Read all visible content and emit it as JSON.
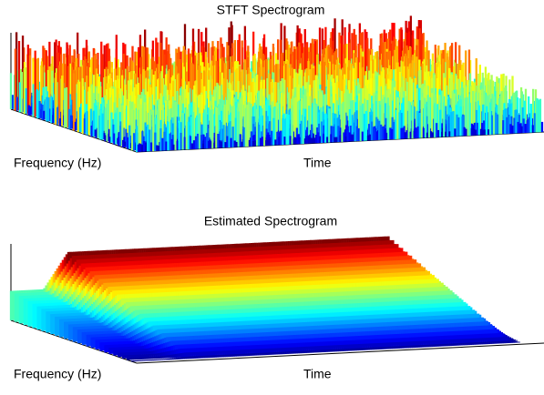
{
  "chart_data": [
    {
      "type": "surface",
      "title": "STFT Spectrogram",
      "xlabel": "Frequency (Hz)",
      "ylabel": "Time",
      "shape": "noisy"
    },
    {
      "type": "surface",
      "title": "Estimated Spectrogram",
      "xlabel": "Frequency (Hz)",
      "ylabel": "Time",
      "shape": "smooth"
    }
  ]
}
